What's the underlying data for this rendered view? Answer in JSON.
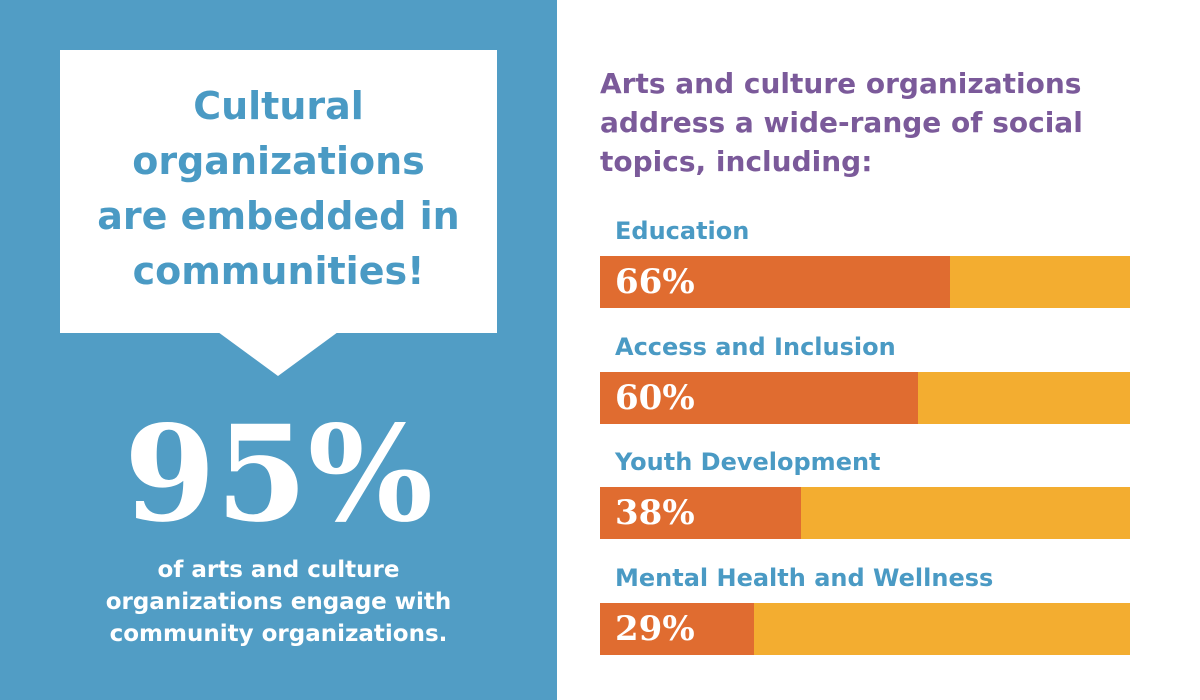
{
  "callout": {
    "lines": [
      "Cultural",
      "organizations",
      "are embedded in",
      "communities!"
    ]
  },
  "stat": {
    "text": "95%",
    "lines": [
      "of arts and culture",
      "organizations engage with",
      "community organizations."
    ]
  },
  "chart_data": {
    "type": "bar",
    "orientation": "horizontal",
    "title": [
      "Arts and culture organizations",
      "address a wide-range of social",
      "topics, including:"
    ],
    "categories": [
      "Education",
      "Access and Inclusion",
      "Youth Development",
      "Mental Health and Wellness"
    ],
    "values": [
      66,
      60,
      38,
      29
    ],
    "value_labels": [
      "66%",
      "60%",
      "38%",
      "29%"
    ],
    "xlim": [
      0,
      100
    ],
    "color": "#e06c30",
    "track_color": "#f3ad30"
  }
}
